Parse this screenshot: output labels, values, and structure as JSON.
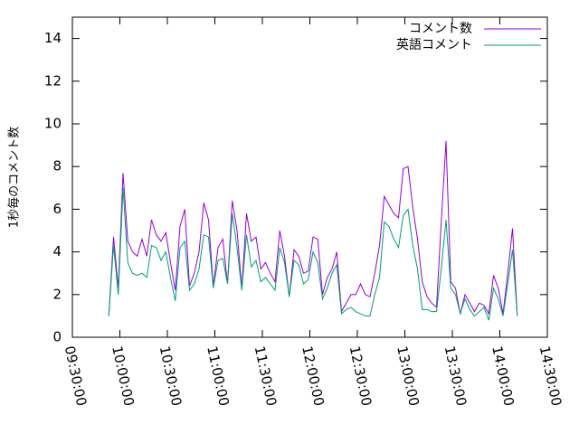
{
  "chart_data": {
    "type": "line",
    "ylabel": "1秒毎のコメント数",
    "x": [
      "09:53:00",
      "09:56:00",
      "09:59:00",
      "10:02:00",
      "10:05:00",
      "10:08:00",
      "10:11:00",
      "10:14:00",
      "10:17:00",
      "10:20:00",
      "10:23:00",
      "10:26:00",
      "10:29:00",
      "10:32:00",
      "10:35:00",
      "10:38:00",
      "10:41:00",
      "10:44:00",
      "10:47:00",
      "10:50:00",
      "10:53:00",
      "10:56:00",
      "10:59:00",
      "11:02:00",
      "11:05:00",
      "11:08:00",
      "11:11:00",
      "11:14:00",
      "11:17:00",
      "11:20:00",
      "11:23:00",
      "11:26:00",
      "11:29:00",
      "11:32:00",
      "11:35:00",
      "11:38:00",
      "11:41:00",
      "11:44:00",
      "11:47:00",
      "11:50:00",
      "11:53:00",
      "11:56:00",
      "11:59:00",
      "12:02:00",
      "12:05:00",
      "12:08:00",
      "12:11:00",
      "12:14:00",
      "12:17:00",
      "12:20:00",
      "12:23:00",
      "12:26:00",
      "12:29:00",
      "12:32:00",
      "12:35:00",
      "12:38:00",
      "12:41:00",
      "12:44:00",
      "12:47:00",
      "12:50:00",
      "12:53:00",
      "12:56:00",
      "12:59:00",
      "13:02:00",
      "13:05:00",
      "13:08:00",
      "13:11:00",
      "13:14:00",
      "13:17:00",
      "13:20:00",
      "13:23:00",
      "13:26:00",
      "13:29:00",
      "13:32:00",
      "13:35:00",
      "13:38:00",
      "13:41:00",
      "13:44:00",
      "13:47:00",
      "13:50:00",
      "13:53:00",
      "13:56:00",
      "13:59:00",
      "14:02:00",
      "14:05:00",
      "14:08:00",
      "14:11:00"
    ],
    "series": [
      {
        "name": "コメント数",
        "color": "#9400d3",
        "values": [
          1.0,
          4.7,
          2.3,
          7.7,
          4.5,
          4.0,
          3.8,
          4.6,
          3.8,
          5.5,
          4.8,
          4.5,
          4.9,
          3.5,
          2.2,
          5.2,
          6.0,
          2.4,
          3.0,
          4.0,
          6.3,
          5.5,
          2.4,
          4.2,
          4.6,
          2.5,
          6.4,
          5.0,
          2.3,
          5.8,
          4.5,
          4.7,
          3.2,
          3.5,
          3.0,
          2.6,
          5.0,
          3.8,
          1.9,
          4.1,
          3.8,
          3.0,
          3.1,
          4.7,
          4.6,
          2.0,
          2.8,
          3.2,
          4.0,
          1.2,
          1.6,
          2.0,
          2.0,
          2.5,
          2.0,
          1.9,
          3.0,
          4.3,
          6.6,
          6.2,
          5.8,
          5.6,
          7.9,
          8.0,
          6.1,
          4.6,
          2.6,
          1.9,
          1.6,
          1.4,
          5.4,
          9.2,
          2.6,
          2.3,
          1.1,
          2.0,
          1.6,
          1.2,
          1.6,
          1.5,
          1.1,
          2.9,
          2.3,
          1.1,
          3.0,
          5.1,
          1.0
        ]
      },
      {
        "name": "英語コメント",
        "color": "#009e73",
        "values": [
          1.0,
          4.3,
          2.0,
          7.0,
          3.5,
          3.0,
          2.9,
          3.0,
          2.8,
          4.3,
          4.2,
          3.6,
          4.0,
          2.8,
          1.7,
          4.2,
          4.5,
          2.2,
          2.5,
          3.2,
          4.8,
          4.7,
          2.3,
          3.6,
          3.7,
          2.5,
          5.8,
          4.2,
          2.2,
          4.8,
          3.3,
          3.6,
          2.6,
          2.8,
          2.5,
          2.2,
          4.2,
          3.5,
          1.9,
          3.6,
          3.4,
          2.5,
          2.7,
          4.0,
          3.5,
          1.8,
          2.3,
          3.0,
          3.4,
          1.1,
          1.3,
          1.4,
          1.2,
          1.1,
          1.0,
          1.0,
          2.0,
          2.8,
          5.4,
          5.2,
          4.6,
          4.2,
          5.7,
          6.0,
          4.3,
          3.2,
          1.3,
          1.3,
          1.2,
          1.2,
          3.2,
          5.5,
          2.3,
          2.0,
          1.1,
          1.8,
          1.3,
          1.0,
          1.2,
          1.4,
          0.8,
          2.3,
          1.8,
          1.0,
          2.5,
          4.1,
          1.0
        ]
      }
    ],
    "xlim": [
      "09:30:00",
      "14:30:00"
    ],
    "xticks": [
      "09:30:00",
      "10:00:00",
      "10:30:00",
      "11:00:00",
      "11:30:00",
      "12:00:00",
      "12:30:00",
      "13:00:00",
      "13:30:00",
      "14:00:00",
      "14:30:00"
    ],
    "ylim": [
      0,
      15
    ],
    "yticks": [
      0,
      2,
      4,
      6,
      8,
      10,
      12,
      14
    ],
    "grid": false,
    "legend": "top-right"
  }
}
